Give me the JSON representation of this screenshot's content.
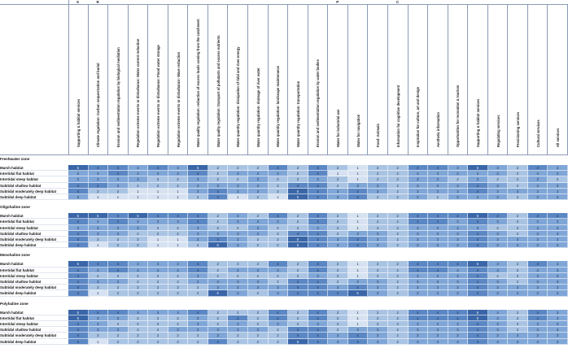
{
  "group_letters": [
    {
      "label": "S",
      "col": 0
    },
    {
      "label": "R",
      "col": 1
    },
    {
      "label": "P",
      "col": 13
    },
    {
      "label": "C",
      "col": 16
    }
  ],
  "columns": [
    "Supporting & habitat services",
    "Climate regulation: Carbon sequestration and burial",
    "Erosion and sedimentation regulation by biological mediation",
    "Regulation extreme events or disturbance: Water current reduction",
    "Regulation extreme events or disturbance: Flood water storage",
    "Regulation extreme events or disturbance: Wave reduction",
    "Water quality regulation: reduction of excess loads coming from the catchment",
    "Water quality regulation: transport of pollutants and excess nutrients",
    "Water quantity regulation: dissipation of tidal and river energy",
    "Water quantity regulation: drainage of river water",
    "Water quantity regulation: landscape maintenance",
    "Water quantity regulation: transportation",
    "Erosion and sedimentation regulation by water bodies",
    "Water for industrial use",
    "Water for navigation",
    "Food: Animals",
    "Information for cognitive development",
    "Inspiration for culture, art and design",
    "Aesthetic information",
    "Opportunities for recreation & tourism",
    "Supporting & habitat services",
    "Regulating services",
    "Provisioning services",
    "Cultural services",
    "All services"
  ],
  "zones": [
    {
      "name": "Freshwater zone",
      "rows": [
        {
          "label": "Marsh habitat",
          "values": [
            5,
            4,
            4,
            3,
            4,
            3,
            5,
            2,
            2,
            2,
            4,
            2,
            4,
            2,
            1,
            2,
            2,
            4,
            4,
            3,
            5,
            3,
            2,
            4,
            3
          ]
        },
        {
          "label": "Intertidal flat habitat",
          "values": [
            3,
            3,
            4,
            3,
            3,
            3,
            4,
            2,
            3,
            3,
            3,
            2,
            4,
            1,
            1,
            2,
            2,
            3,
            3,
            3,
            3,
            3,
            2,
            3,
            3
          ]
        },
        {
          "label": "Intertidal steep habitat",
          "values": [
            3,
            3,
            3,
            3,
            2,
            2,
            3,
            2,
            2,
            3,
            2,
            2,
            3,
            2,
            1,
            2,
            2,
            3,
            3,
            2,
            3,
            2,
            2,
            3,
            2
          ]
        },
        {
          "label": "Subtidal shallow habitat",
          "values": [
            4,
            4,
            3,
            2,
            2,
            2,
            3,
            3,
            3,
            3,
            2,
            4,
            4,
            2,
            3,
            3,
            2,
            3,
            3,
            3,
            4,
            3,
            2,
            3,
            3
          ]
        },
        {
          "label": "Subtidal moderately deep habitat",
          "values": [
            4,
            2,
            2,
            1,
            1,
            1,
            3,
            4,
            3,
            3,
            2,
            5,
            4,
            3,
            4,
            3,
            2,
            3,
            3,
            3,
            4,
            3,
            3,
            3,
            3
          ]
        },
        {
          "label": "Subtidal deep habitat",
          "values": [
            3,
            1,
            1,
            1,
            1,
            1,
            2,
            4,
            1,
            2,
            1,
            5,
            4,
            3,
            4,
            2,
            2,
            3,
            2,
            3,
            3,
            3,
            2,
            3,
            3
          ]
        }
      ]
    },
    {
      "name": "Oligohaline zone",
      "rows": [
        {
          "label": "Marsh habitat",
          "values": [
            5,
            5,
            4,
            5,
            4,
            4,
            4,
            2,
            3,
            2,
            4,
            2,
            4,
            2,
            1,
            2,
            2,
            4,
            4,
            4,
            5,
            4,
            2,
            4,
            4
          ]
        },
        {
          "label": "Intertidal flat habitat",
          "values": [
            4,
            3,
            4,
            3,
            3,
            3,
            4,
            2,
            3,
            3,
            3,
            2,
            4,
            2,
            1,
            2,
            2,
            4,
            4,
            3,
            4,
            3,
            2,
            3,
            3
          ]
        },
        {
          "label": "Intertidal steep habitat",
          "values": [
            3,
            3,
            3,
            3,
            2,
            2,
            3,
            2,
            2,
            3,
            2,
            2,
            3,
            2,
            1,
            2,
            2,
            3,
            3,
            3,
            3,
            2,
            2,
            3,
            3
          ]
        },
        {
          "label": "Subtidal shallow habitat",
          "values": [
            4,
            3,
            3,
            2,
            2,
            2,
            3,
            3,
            3,
            3,
            2,
            4,
            4,
            2,
            3,
            3,
            2,
            3,
            3,
            3,
            4,
            3,
            2,
            3,
            3
          ]
        },
        {
          "label": "Subtidal moderately deep habitat",
          "values": [
            4,
            2,
            2,
            2,
            1,
            1,
            3,
            4,
            3,
            2,
            2,
            5,
            4,
            3,
            4,
            3,
            2,
            3,
            3,
            3,
            4,
            3,
            3,
            3,
            3
          ]
        },
        {
          "label": "Subtidal deep habitat",
          "values": [
            4,
            1,
            2,
            2,
            1,
            1,
            2,
            5,
            3,
            2,
            2,
            5,
            4,
            3,
            4,
            3,
            2,
            3,
            3,
            3,
            4,
            3,
            3,
            3,
            3
          ]
        }
      ]
    },
    {
      "name": "Mesohaline zone",
      "rows": [
        {
          "label": "Marsh habitat",
          "values": [
            5,
            4,
            4,
            3,
            3,
            3,
            4,
            2,
            2,
            2,
            4,
            2,
            4,
            2,
            1,
            2,
            2,
            4,
            4,
            4,
            5,
            3,
            2,
            4,
            3
          ]
        },
        {
          "label": "Intertidal flat habitat",
          "values": [
            4,
            3,
            4,
            3,
            3,
            3,
            4,
            2,
            3,
            3,
            3,
            2,
            4,
            2,
            1,
            2,
            2,
            4,
            4,
            3,
            4,
            3,
            2,
            3,
            3
          ]
        },
        {
          "label": "Intertidal steep habitat",
          "values": [
            4,
            2,
            2,
            2,
            2,
            2,
            3,
            2,
            2,
            2,
            2,
            2,
            3,
            2,
            1,
            2,
            2,
            3,
            3,
            3,
            4,
            2,
            2,
            3,
            3
          ]
        },
        {
          "label": "Subtidal shallow habitat",
          "values": [
            4,
            3,
            3,
            2,
            2,
            2,
            3,
            3,
            3,
            3,
            2,
            4,
            4,
            2,
            3,
            3,
            2,
            3,
            3,
            3,
            4,
            3,
            2,
            3,
            3
          ]
        },
        {
          "label": "Subtidal moderately deep habitat",
          "values": [
            4,
            2,
            2,
            2,
            2,
            2,
            2,
            3,
            3,
            3,
            3,
            4,
            4,
            3,
            4,
            3,
            2,
            3,
            3,
            3,
            4,
            3,
            3,
            3,
            3
          ]
        },
        {
          "label": "Subtidal deep habitat",
          "values": [
            4,
            1,
            2,
            2,
            2,
            2,
            2,
            5,
            3,
            2,
            3,
            4,
            4,
            4,
            5,
            3,
            2,
            3,
            3,
            3,
            4,
            3,
            3,
            3,
            3
          ]
        }
      ]
    },
    {
      "name": "Polyhaline zone",
      "rows": [
        {
          "label": "Marsh habitat",
          "values": [
            5,
            4,
            4,
            3,
            3,
            3,
            4,
            2,
            2,
            2,
            4,
            2,
            4,
            2,
            1,
            2,
            2,
            4,
            4,
            4,
            5,
            3,
            2,
            4,
            3
          ]
        },
        {
          "label": "Intertidal flat habitat",
          "values": [
            5,
            3,
            3,
            2,
            2,
            2,
            3,
            2,
            4,
            2,
            4,
            2,
            4,
            2,
            1,
            2,
            2,
            4,
            4,
            4,
            5,
            3,
            2,
            4,
            3
          ]
        },
        {
          "label": "Intertidal steep habitat",
          "values": [
            4,
            3,
            2,
            2,
            2,
            2,
            3,
            2,
            3,
            2,
            3,
            2,
            3,
            2,
            1,
            2,
            2,
            3,
            3,
            3,
            4,
            3,
            2,
            3,
            3
          ]
        },
        {
          "label": "Subtidal shallow habitat",
          "values": [
            4,
            3,
            3,
            2,
            2,
            3,
            3,
            3,
            3,
            3,
            2,
            4,
            4,
            2,
            3,
            3,
            2,
            3,
            3,
            3,
            4,
            3,
            2,
            3,
            3
          ]
        },
        {
          "label": "Subtidal moderately deep habitat",
          "values": [
            4,
            2,
            2,
            2,
            2,
            2,
            2,
            3,
            2,
            2,
            2,
            4,
            4,
            3,
            4,
            3,
            2,
            3,
            3,
            3,
            4,
            3,
            3,
            3,
            3
          ]
        },
        {
          "label": "Subtidal deep habitat",
          "values": [
            4,
            1,
            2,
            2,
            2,
            2,
            2,
            4,
            2,
            2,
            2,
            5,
            4,
            3,
            4,
            3,
            2,
            3,
            3,
            3,
            4,
            3,
            3,
            3,
            3
          ]
        }
      ]
    }
  ],
  "colors": {
    "1": "#d6e2f1",
    "2": "#a9c3e3",
    "3": "#7fa6d7",
    "4": "#5b87c4",
    "5": "#3a66a8"
  }
}
